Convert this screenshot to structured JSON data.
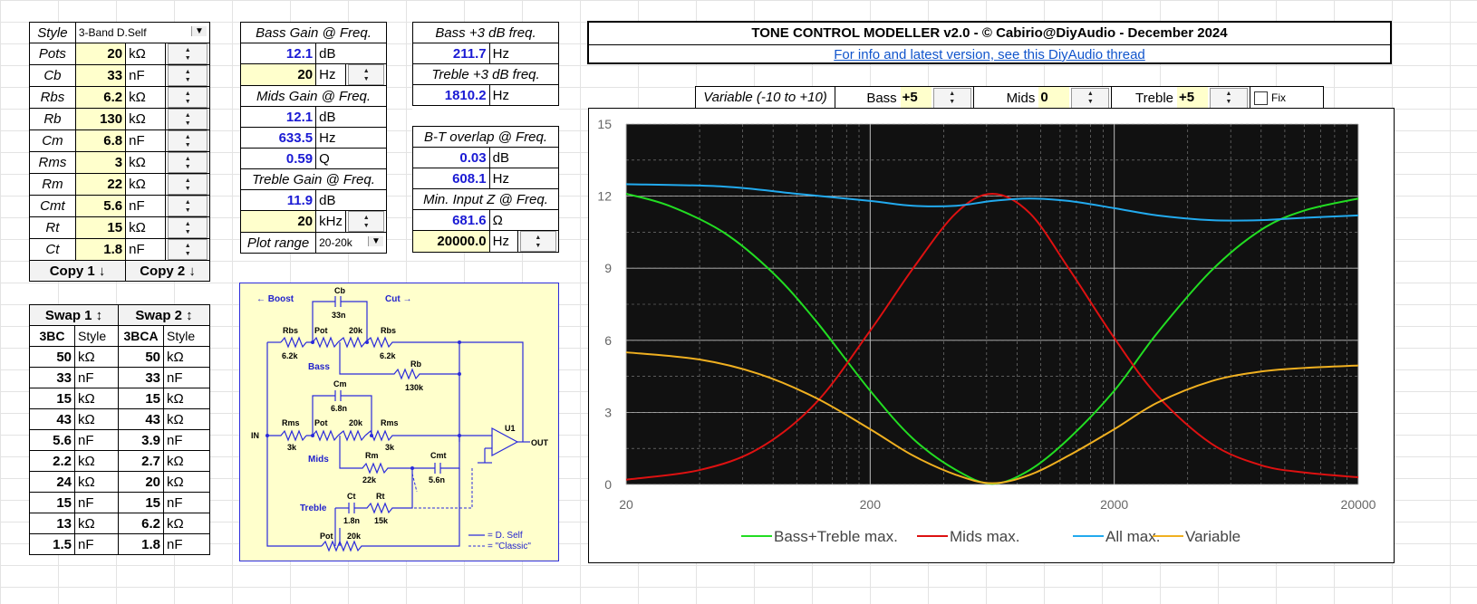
{
  "left_table": {
    "style_label": "Style",
    "style_value": "3-Band D.Self",
    "rows": [
      {
        "label": "Pots",
        "value": "20",
        "unit": "kΩ"
      },
      {
        "label": "Cb",
        "value": "33",
        "unit": "nF"
      },
      {
        "label": "Rbs",
        "value": "6.2",
        "unit": "kΩ"
      },
      {
        "label": "Rb",
        "value": "130",
        "unit": "kΩ"
      },
      {
        "label": "Cm",
        "value": "6.8",
        "unit": "nF"
      },
      {
        "label": "Rms",
        "value": "3",
        "unit": "kΩ"
      },
      {
        "label": "Rm",
        "value": "22",
        "unit": "kΩ"
      },
      {
        "label": "Cmt",
        "value": "5.6",
        "unit": "nF"
      },
      {
        "label": "Rt",
        "value": "15",
        "unit": "kΩ"
      },
      {
        "label": "Ct",
        "value": "1.8",
        "unit": "nF"
      }
    ],
    "copy1": "Copy 1 ↓",
    "copy2": "Copy 2 ↓"
  },
  "mid_table": {
    "bass_gain_label": "Bass Gain @ Freq.",
    "bass_gain": "12.1",
    "bass_gain_unit": "dB",
    "bass_freq": "20",
    "bass_freq_unit": "Hz",
    "mids_gain_label": "Mids Gain @ Freq.",
    "mids_gain": "12.1",
    "mids_gain_unit": "dB",
    "mids_freq": "633.5",
    "mids_freq_unit": "Hz",
    "mids_q": "0.59",
    "mids_q_unit": "Q",
    "treble_gain_label": "Treble Gain @ Freq.",
    "treble_gain": "11.9",
    "treble_gain_unit": "dB",
    "treble_freq": "20",
    "treble_freq_unit": "kHz",
    "plot_range_label": "Plot range",
    "plot_range_value": "20-20k"
  },
  "right_table": {
    "bass3_label": "Bass +3 dB freq.",
    "bass3": "211.7",
    "bass3_unit": "Hz",
    "treble3_label": "Treble +3 dB freq.",
    "treble3": "1810.2",
    "treble3_unit": "Hz",
    "bt_label": "B-T overlap @ Freq.",
    "bt_db": "0.03",
    "bt_db_unit": "dB",
    "bt_freq": "608.1",
    "bt_freq_unit": "Hz",
    "minz_label": "Min. Input Z @ Freq.",
    "minz": "681.6",
    "minz_unit": "Ω",
    "minz_freq": "20000.0",
    "minz_freq_unit": "Hz"
  },
  "swap_table": {
    "swap1": "Swap 1 ↕",
    "swap2": "Swap 2 ↕",
    "col1_name": "3BC",
    "col1_style": "Style",
    "col2_name": "3BCA",
    "col2_style": "Style",
    "rows": [
      {
        "v1": "50",
        "u1": "kΩ",
        "v2": "50",
        "u2": "kΩ"
      },
      {
        "v1": "33",
        "u1": "nF",
        "v2": "33",
        "u2": "nF"
      },
      {
        "v1": "15",
        "u1": "kΩ",
        "v2": "15",
        "u2": "kΩ"
      },
      {
        "v1": "43",
        "u1": "kΩ",
        "v2": "43",
        "u2": "kΩ"
      },
      {
        "v1": "5.6",
        "u1": "nF",
        "v2": "3.9",
        "u2": "nF"
      },
      {
        "v1": "2.2",
        "u1": "kΩ",
        "v2": "2.7",
        "u2": "kΩ"
      },
      {
        "v1": "24",
        "u1": "kΩ",
        "v2": "20",
        "u2": "kΩ"
      },
      {
        "v1": "15",
        "u1": "nF",
        "v2": "15",
        "u2": "nF"
      },
      {
        "v1": "13",
        "u1": "kΩ",
        "v2": "6.2",
        "u2": "kΩ"
      },
      {
        "v1": "1.5",
        "u1": "nF",
        "v2": "1.8",
        "u2": "nF"
      }
    ]
  },
  "header": {
    "title": "TONE CONTROL MODELLER v2.0 - © Cabirio@DiyAudio - December 2024",
    "link": "For info and latest version, see this DiyAudio thread"
  },
  "controls": {
    "variable_label": "Variable (-10 to +10)",
    "bass_label": "Bass",
    "bass_value": "+5",
    "mids_label": "Mids",
    "mids_value": "0",
    "treble_label": "Treble",
    "treble_value": "+5",
    "fix_label": "Fix"
  },
  "schematic": {
    "boost": "← Boost",
    "cut": "Cut →",
    "labels": [
      "Cb",
      "33n",
      "Rbs",
      "Pot",
      "20k",
      "Rbs",
      "6.2k",
      "6.2k",
      "Bass",
      "Rb",
      "130k",
      "Cm",
      "6.8n",
      "Rms",
      "Pot",
      "20k",
      "Rms",
      "3k",
      "3k",
      "Mids",
      "Rm",
      "22k",
      "Cmt",
      "5.6n",
      "U1",
      "OUT",
      "IN",
      "Ct",
      "Rt",
      "1.8n",
      "15k",
      "Treble",
      "Pot",
      "20k"
    ],
    "legend1": "= D. Self",
    "legend2": "= \"Classic\""
  },
  "chart_data": {
    "type": "line",
    "x_scale": "log",
    "xlim": [
      20,
      20000
    ],
    "ylim": [
      0,
      15
    ],
    "x_ticks": [
      "20",
      "200",
      "2000",
      "20000"
    ],
    "y_ticks": [
      "0",
      "3",
      "6",
      "9",
      "12",
      "15"
    ],
    "grid": true,
    "legend_position": "bottom",
    "series": [
      {
        "name": "Bass+Treble max.",
        "color": "#22dd22",
        "x": [
          20,
          30,
          50,
          80,
          120,
          200,
          300,
          450,
          633,
          900,
          1300,
          2000,
          3000,
          5000,
          8000,
          12000,
          20000
        ],
        "y": [
          12.1,
          11.6,
          10.5,
          8.8,
          6.8,
          3.9,
          1.9,
          0.6,
          0.03,
          0.6,
          1.9,
          3.9,
          6.3,
          8.9,
          10.6,
          11.4,
          11.9
        ]
      },
      {
        "name": "Mids max.",
        "color": "#dd1111",
        "x": [
          20,
          40,
          70,
          120,
          200,
          300,
          450,
          633,
          900,
          1300,
          2000,
          3000,
          5000,
          8000,
          12000,
          20000
        ],
        "y": [
          0.2,
          0.6,
          1.5,
          3.4,
          6.4,
          9.0,
          11.3,
          12.1,
          11.3,
          9.0,
          6.1,
          3.7,
          1.7,
          0.8,
          0.5,
          0.3
        ]
      },
      {
        "name": "All max.",
        "color": "#22aaee",
        "x": [
          20,
          50,
          100,
          200,
          300,
          450,
          633,
          900,
          1300,
          2000,
          3000,
          5000,
          8000,
          12000,
          20000
        ],
        "y": [
          12.5,
          12.4,
          12.1,
          11.8,
          11.6,
          11.6,
          11.8,
          11.9,
          11.8,
          11.5,
          11.2,
          11.0,
          11.0,
          11.1,
          11.2
        ]
      },
      {
        "name": "Variable",
        "color": "#f0b020",
        "x": [
          20,
          40,
          70,
          120,
          200,
          300,
          450,
          633,
          900,
          1300,
          2000,
          3000,
          5000,
          8000,
          12000,
          20000
        ],
        "y": [
          5.5,
          5.2,
          4.6,
          3.6,
          2.3,
          1.2,
          0.4,
          0.05,
          0.4,
          1.2,
          2.3,
          3.4,
          4.3,
          4.7,
          4.85,
          4.95
        ]
      }
    ]
  }
}
